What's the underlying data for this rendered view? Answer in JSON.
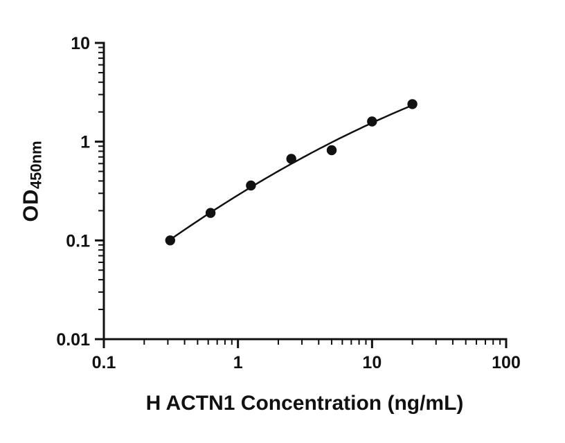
{
  "figure": {
    "background": "#ffffff"
  },
  "chart_data": {
    "type": "scatter",
    "title": "",
    "xlabel": "H ACTN1 Concentration (ng/mL)",
    "ylabel_main": "OD",
    "ylabel_sub": "450nm",
    "xscale": "log",
    "yscale": "log",
    "xlim": [
      0.1,
      100
    ],
    "ylim": [
      0.01,
      10
    ],
    "x_tick_values": [
      0.1,
      1,
      10,
      100
    ],
    "x_tick_labels": [
      "0.1",
      "1",
      "10",
      "100"
    ],
    "y_tick_values": [
      10,
      1,
      0.1,
      0.01
    ],
    "y_tick_labels": [
      "10",
      "1",
      "0.1",
      "0.01"
    ],
    "points": {
      "x": [
        0.3125,
        0.625,
        1.25,
        2.5,
        5,
        10,
        20
      ],
      "y": [
        0.1,
        0.19,
        0.36,
        0.67,
        0.82,
        1.6,
        2.4
      ]
    },
    "trendline": {
      "type": "quadratic-loglog",
      "a": -0.541,
      "b": 0.8383,
      "c": -0.10694,
      "u_min": -0.5051,
      "u_max": 1.301
    },
    "marker_color": "#111111",
    "line_color": "#111111",
    "axis_color": "#111111",
    "grid": false,
    "legend": "none"
  }
}
